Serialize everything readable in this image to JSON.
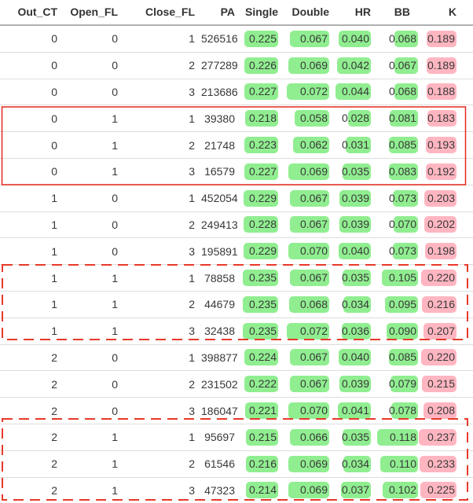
{
  "chart_data": {
    "type": "table",
    "columns": [
      {
        "key": "out_ct",
        "label": "Out_CT",
        "kind": "plain"
      },
      {
        "key": "open_fl",
        "label": "Open_FL",
        "kind": "plain"
      },
      {
        "key": "close_fl",
        "label": "Close_FL",
        "kind": "plain"
      },
      {
        "key": "pa",
        "label": "PA",
        "kind": "plain"
      },
      {
        "key": "single",
        "label": "Single",
        "kind": "bar",
        "bar_color": "#90ee90"
      },
      {
        "key": "double",
        "label": "Double",
        "kind": "bar",
        "bar_color": "#90ee90"
      },
      {
        "key": "hr",
        "label": "HR",
        "kind": "bar",
        "bar_color": "#90ee90"
      },
      {
        "key": "bb",
        "label": "BB",
        "kind": "bar",
        "bar_color": "#90ee90"
      },
      {
        "key": "k",
        "label": "K",
        "kind": "bar",
        "bar_color": "#ffb6c1"
      }
    ],
    "rows": [
      [
        "0",
        "0",
        "1",
        "526516",
        "0.225",
        "0.067",
        "0.040",
        "0.068",
        "0.189"
      ],
      [
        "0",
        "0",
        "2",
        "277289",
        "0.226",
        "0.069",
        "0.042",
        "0.067",
        "0.189"
      ],
      [
        "0",
        "0",
        "3",
        "213686",
        "0.227",
        "0.072",
        "0.044",
        "0.068",
        "0.188"
      ],
      [
        "0",
        "1",
        "1",
        "39380",
        "0.218",
        "0.058",
        "0.028",
        "0.081",
        "0.183"
      ],
      [
        "0",
        "1",
        "2",
        "21748",
        "0.223",
        "0.062",
        "0.031",
        "0.085",
        "0.193"
      ],
      [
        "0",
        "1",
        "3",
        "16579",
        "0.227",
        "0.069",
        "0.035",
        "0.083",
        "0.192"
      ],
      [
        "1",
        "0",
        "1",
        "452054",
        "0.229",
        "0.067",
        "0.039",
        "0.073",
        "0.203"
      ],
      [
        "1",
        "0",
        "2",
        "249413",
        "0.228",
        "0.067",
        "0.039",
        "0.070",
        "0.202"
      ],
      [
        "1",
        "0",
        "3",
        "195891",
        "0.229",
        "0.070",
        "0.040",
        "0.073",
        "0.198"
      ],
      [
        "1",
        "1",
        "1",
        "78858",
        "0.235",
        "0.067",
        "0.035",
        "0.105",
        "0.220"
      ],
      [
        "1",
        "1",
        "2",
        "44679",
        "0.235",
        "0.068",
        "0.034",
        "0.095",
        "0.216"
      ],
      [
        "1",
        "1",
        "3",
        "32438",
        "0.235",
        "0.072",
        "0.036",
        "0.090",
        "0.207"
      ],
      [
        "2",
        "0",
        "1",
        "398877",
        "0.224",
        "0.067",
        "0.040",
        "0.085",
        "0.220"
      ],
      [
        "2",
        "0",
        "2",
        "231502",
        "0.222",
        "0.067",
        "0.039",
        "0.079",
        "0.215"
      ],
      [
        "2",
        "0",
        "3",
        "186047",
        "0.221",
        "0.070",
        "0.041",
        "0.078",
        "0.208"
      ],
      [
        "2",
        "1",
        "1",
        "95697",
        "0.215",
        "0.066",
        "0.035",
        "0.118",
        "0.237"
      ],
      [
        "2",
        "1",
        "2",
        "61546",
        "0.216",
        "0.069",
        "0.034",
        "0.110",
        "0.233"
      ],
      [
        "2",
        "1",
        "3",
        "47323",
        "0.214",
        "0.069",
        "0.037",
        "0.102",
        "0.225"
      ]
    ],
    "bar_scaling": "width proportional to value divided by column max",
    "annotations": [
      {
        "style": "solid",
        "color": "#e3291c",
        "row_from": 4,
        "row_to": 6
      },
      {
        "style": "dashed",
        "color": "#e8392a",
        "row_from": 10,
        "row_to": 12
      },
      {
        "style": "dashed",
        "color": "#e8392a",
        "row_from": 16,
        "row_to": 18
      }
    ],
    "grid_color": "#dddddd",
    "header_rule_color": "#b0b0b0"
  }
}
